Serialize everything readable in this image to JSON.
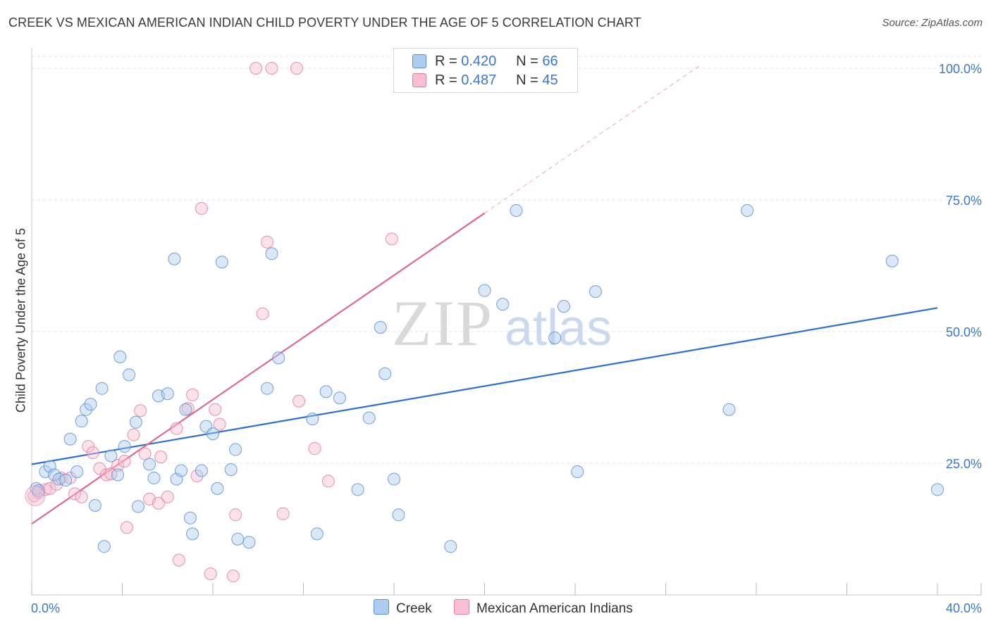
{
  "title": "CREEK VS MEXICAN AMERICAN INDIAN CHILD POVERTY UNDER THE AGE OF 5 CORRELATION CHART",
  "source": "Source: ZipAtlas.com",
  "watermark": {
    "zip": "ZIP",
    "atlas": "atlas"
  },
  "legend": {
    "r_label": "R =",
    "n_label": "N =",
    "creek": {
      "r": "0.420",
      "n": "66"
    },
    "mexican": {
      "r": "0.487",
      "n": "45"
    }
  },
  "colors": {
    "creek_fill": "#aecbf0",
    "creek_stroke": "#5b8fd6",
    "creek_line": "#2f6fd0",
    "mex_fill": "#f7bfd0",
    "mex_stroke": "#e17fa0",
    "mex_line": "#e0688f",
    "axis_text": "#3b78c8",
    "grid": "#e3e3e3"
  },
  "chart_data": {
    "type": "scatter",
    "title": "CREEK VS MEXICAN AMERICAN INDIAN CHILD POVERTY UNDER THE AGE OF 5 CORRELATION CHART",
    "xlabel": "",
    "ylabel": "Child Poverty Under the Age of 5",
    "xlim": [
      0,
      40
    ],
    "ylim": [
      0,
      102
    ],
    "x_tick_labels": [
      "0.0%",
      "40.0%"
    ],
    "y_ticks": [
      25,
      50,
      75,
      100
    ],
    "y_tick_labels": [
      "25.0%",
      "50.0%",
      "75.0%",
      "100.0%"
    ],
    "legend_position": "top-center",
    "series": [
      {
        "name": "Creek",
        "R": 0.42,
        "N": 66,
        "trend": {
          "x0": 0,
          "y0": 24.8,
          "x1": 40,
          "y1": 54.5
        },
        "points": [
          [
            0.2,
            20.2
          ],
          [
            0.3,
            19.8
          ],
          [
            0.6,
            23.4
          ],
          [
            0.8,
            24.4
          ],
          [
            1.0,
            22.8
          ],
          [
            1.2,
            22.0
          ],
          [
            1.5,
            21.8
          ],
          [
            1.7,
            29.6
          ],
          [
            2.0,
            23.4
          ],
          [
            2.2,
            33.0
          ],
          [
            2.4,
            35.2
          ],
          [
            2.6,
            36.2
          ],
          [
            2.8,
            17.0
          ],
          [
            3.1,
            39.2
          ],
          [
            3.2,
            9.2
          ],
          [
            3.5,
            26.4
          ],
          [
            3.8,
            22.8
          ],
          [
            3.9,
            45.2
          ],
          [
            4.1,
            28.2
          ],
          [
            4.3,
            41.8
          ],
          [
            4.6,
            32.8
          ],
          [
            4.7,
            16.8
          ],
          [
            5.2,
            24.8
          ],
          [
            5.4,
            22.2
          ],
          [
            5.6,
            37.8
          ],
          [
            6.0,
            38.2
          ],
          [
            6.3,
            63.8
          ],
          [
            6.4,
            22.0
          ],
          [
            6.6,
            23.6
          ],
          [
            6.8,
            35.2
          ],
          [
            7.0,
            14.6
          ],
          [
            7.1,
            11.6
          ],
          [
            7.5,
            23.6
          ],
          [
            7.7,
            32.0
          ],
          [
            8.0,
            30.6
          ],
          [
            8.2,
            20.2
          ],
          [
            8.4,
            63.2
          ],
          [
            8.8,
            23.8
          ],
          [
            9.0,
            27.6
          ],
          [
            9.1,
            10.6
          ],
          [
            9.6,
            10.0
          ],
          [
            10.4,
            39.2
          ],
          [
            10.6,
            64.8
          ],
          [
            10.9,
            45.0
          ],
          [
            12.4,
            33.4
          ],
          [
            12.6,
            11.6
          ],
          [
            13.0,
            38.6
          ],
          [
            13.6,
            37.4
          ],
          [
            14.4,
            20.0
          ],
          [
            14.9,
            33.6
          ],
          [
            15.4,
            50.8
          ],
          [
            15.6,
            42.0
          ],
          [
            16.0,
            22.0
          ],
          [
            16.2,
            15.2
          ],
          [
            18.5,
            9.2
          ],
          [
            20.0,
            57.8
          ],
          [
            20.8,
            55.2
          ],
          [
            21.4,
            73.0
          ],
          [
            23.1,
            48.8
          ],
          [
            23.5,
            54.8
          ],
          [
            24.1,
            23.4
          ],
          [
            24.9,
            57.6
          ],
          [
            30.8,
            35.2
          ],
          [
            31.6,
            73.0
          ],
          [
            38.0,
            63.4
          ],
          [
            40.0,
            20.0
          ]
        ]
      },
      {
        "name": "Mexican American Indians",
        "R": 0.487,
        "N": 45,
        "trend": {
          "x0": 0,
          "y0": 13.5,
          "x1": 20,
          "y1": 72.5,
          "x1_dashed": 29.5,
          "y1_dashed": 100.5
        },
        "points": [
          [
            0.1,
            18.8
          ],
          [
            0.3,
            19.4
          ],
          [
            0.6,
            20.0
          ],
          [
            0.8,
            20.2
          ],
          [
            1.1,
            21.0
          ],
          [
            1.3,
            22.2
          ],
          [
            1.7,
            22.2
          ],
          [
            1.9,
            19.2
          ],
          [
            2.2,
            18.6
          ],
          [
            2.5,
            28.2
          ],
          [
            2.7,
            27.0
          ],
          [
            3.0,
            24.0
          ],
          [
            3.3,
            22.8
          ],
          [
            3.5,
            23.0
          ],
          [
            3.8,
            24.6
          ],
          [
            4.1,
            25.4
          ],
          [
            4.2,
            12.8
          ],
          [
            4.5,
            30.4
          ],
          [
            4.8,
            35.0
          ],
          [
            5.0,
            26.8
          ],
          [
            5.2,
            18.2
          ],
          [
            5.6,
            17.4
          ],
          [
            5.7,
            26.2
          ],
          [
            6.0,
            18.6
          ],
          [
            6.4,
            31.6
          ],
          [
            6.5,
            6.6
          ],
          [
            6.9,
            35.4
          ],
          [
            7.1,
            38.0
          ],
          [
            7.3,
            22.6
          ],
          [
            7.5,
            73.4
          ],
          [
            7.9,
            4.0
          ],
          [
            8.1,
            35.2
          ],
          [
            8.3,
            32.4
          ],
          [
            8.9,
            3.6
          ],
          [
            9.0,
            15.2
          ],
          [
            9.9,
            100.0
          ],
          [
            10.2,
            53.4
          ],
          [
            10.4,
            67.0
          ],
          [
            10.6,
            100.0
          ],
          [
            11.1,
            15.4
          ],
          [
            11.7,
            100.0
          ],
          [
            11.8,
            36.8
          ],
          [
            12.5,
            27.8
          ],
          [
            13.1,
            21.6
          ],
          [
            15.9,
            67.6
          ]
        ]
      }
    ]
  }
}
